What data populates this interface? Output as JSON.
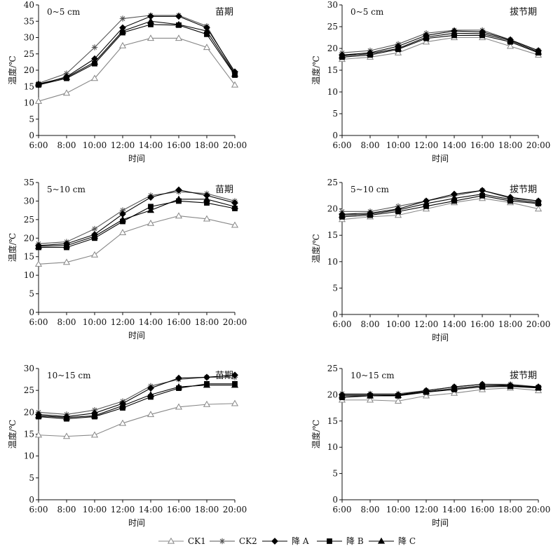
{
  "figure": {
    "x_label": "时间",
    "y_label": "温度/℃",
    "legend_position": "bottom-center"
  },
  "legend": [
    {
      "key": "ck1",
      "label": "CK1",
      "marker": "triangle-open",
      "color": "#888888"
    },
    {
      "key": "ck2",
      "label": "CK2",
      "marker": "star",
      "color": "#555555"
    },
    {
      "key": "jA",
      "label": "降 A",
      "marker": "diamond",
      "color": "#000000"
    },
    {
      "key": "jB",
      "label": "降 B",
      "marker": "square",
      "color": "#000000"
    },
    {
      "key": "jC",
      "label": "降 C",
      "marker": "triangle",
      "color": "#000000"
    }
  ],
  "chart_data": [
    {
      "type": "line",
      "depth_label": "0~5 cm",
      "stage_label": "苗期",
      "categories": [
        "6:00",
        "8:00",
        "10:00",
        "12:00",
        "14:00",
        "16:00",
        "18:00",
        "20:00"
      ],
      "ylim": [
        0,
        40
      ],
      "yticks": [
        0,
        5,
        10,
        15,
        20,
        25,
        30,
        35,
        40
      ],
      "series": [
        {
          "key": "ck1",
          "values": [
            10.5,
            13.0,
            17.5,
            27.5,
            29.8,
            29.8,
            27.0,
            15.5
          ]
        },
        {
          "key": "ck2",
          "values": [
            16.0,
            19.0,
            27.0,
            35.8,
            36.8,
            36.8,
            33.5,
            19.0
          ]
        },
        {
          "key": "jA",
          "values": [
            15.5,
            18.0,
            23.5,
            33.0,
            36.5,
            36.5,
            33.0,
            19.5
          ]
        },
        {
          "key": "jB",
          "values": [
            15.5,
            17.5,
            22.0,
            31.5,
            34.0,
            33.8,
            31.0,
            18.5
          ]
        },
        {
          "key": "jC",
          "values": [
            15.8,
            17.8,
            22.5,
            32.0,
            35.0,
            34.0,
            32.0,
            18.8
          ]
        }
      ]
    },
    {
      "type": "line",
      "depth_label": "0~5 cm",
      "stage_label": "拔节期",
      "categories": [
        "6:00",
        "8:00",
        "10:00",
        "12:00",
        "14:00",
        "16:00",
        "18:00",
        "20:00"
      ],
      "ylim": [
        0,
        30
      ],
      "yticks": [
        0,
        5,
        10,
        15,
        20,
        25,
        30
      ],
      "series": [
        {
          "key": "ck1",
          "values": [
            17.5,
            18.0,
            19.0,
            21.5,
            22.5,
            22.5,
            20.5,
            18.5
          ]
        },
        {
          "key": "ck2",
          "values": [
            19.0,
            19.5,
            21.0,
            23.5,
            24.2,
            24.2,
            22.0,
            19.5
          ]
        },
        {
          "key": "jA",
          "values": [
            18.5,
            19.0,
            20.5,
            23.0,
            24.0,
            23.8,
            22.0,
            19.5
          ]
        },
        {
          "key": "jB",
          "values": [
            18.0,
            18.5,
            19.8,
            22.3,
            23.0,
            23.0,
            21.5,
            19.0
          ]
        },
        {
          "key": "jC",
          "values": [
            18.3,
            18.8,
            20.0,
            22.6,
            23.5,
            23.4,
            21.8,
            19.2
          ]
        }
      ]
    },
    {
      "type": "line",
      "depth_label": "5~10 cm",
      "stage_label": "苗期",
      "categories": [
        "6:00",
        "8:00",
        "10:00",
        "12:00",
        "14:00",
        "16:00",
        "18:00",
        "20:00"
      ],
      "ylim": [
        0,
        35
      ],
      "yticks": [
        0,
        5,
        10,
        15,
        20,
        25,
        30,
        35
      ],
      "series": [
        {
          "key": "ck1",
          "values": [
            13.0,
            13.5,
            15.5,
            21.5,
            24.0,
            26.0,
            25.2,
            23.5
          ]
        },
        {
          "key": "ck2",
          "values": [
            18.5,
            19.0,
            22.5,
            27.5,
            31.5,
            32.5,
            32.0,
            30.0
          ]
        },
        {
          "key": "jA",
          "values": [
            18.0,
            18.5,
            21.0,
            26.5,
            31.0,
            33.0,
            31.5,
            29.5
          ]
        },
        {
          "key": "jB",
          "values": [
            17.5,
            17.5,
            20.0,
            24.5,
            28.5,
            30.0,
            29.5,
            28.0
          ]
        },
        {
          "key": "jC",
          "values": [
            17.8,
            18.0,
            20.5,
            25.0,
            27.5,
            30.5,
            30.5,
            28.5
          ]
        }
      ]
    },
    {
      "type": "line",
      "depth_label": "5~10 cm",
      "stage_label": "拔节期",
      "categories": [
        "6:00",
        "8:00",
        "10:00",
        "12:00",
        "14:00",
        "16:00",
        "18:00",
        "20:00"
      ],
      "ylim": [
        0,
        25
      ],
      "yticks": [
        0,
        5,
        10,
        15,
        20,
        25
      ],
      "series": [
        {
          "key": "ck1",
          "values": [
            18.0,
            18.5,
            18.8,
            20.0,
            21.2,
            22.0,
            21.2,
            20.0
          ]
        },
        {
          "key": "ck2",
          "values": [
            19.5,
            19.5,
            20.5,
            21.5,
            22.5,
            23.5,
            22.0,
            21.5
          ]
        },
        {
          "key": "jA",
          "values": [
            19.0,
            19.2,
            20.0,
            21.5,
            22.8,
            23.5,
            22.2,
            21.5
          ]
        },
        {
          "key": "jB",
          "values": [
            18.5,
            18.8,
            19.5,
            20.5,
            21.5,
            22.5,
            21.5,
            21.0
          ]
        },
        {
          "key": "jC",
          "values": [
            18.8,
            19.0,
            19.8,
            21.0,
            22.0,
            22.8,
            21.8,
            21.2
          ]
        }
      ]
    },
    {
      "type": "line",
      "depth_label": "10~15 cm",
      "stage_label": "苗期",
      "categories": [
        "6:00",
        "8:00",
        "10:00",
        "12:00",
        "14:00",
        "16:00",
        "18:00",
        "20:00"
      ],
      "ylim": [
        0,
        30
      ],
      "yticks": [
        0,
        5,
        10,
        15,
        20,
        25,
        30
      ],
      "series": [
        {
          "key": "ck1",
          "values": [
            14.8,
            14.5,
            14.8,
            17.5,
            19.5,
            21.2,
            21.8,
            22.0
          ]
        },
        {
          "key": "ck2",
          "values": [
            20.0,
            19.5,
            20.5,
            22.5,
            26.0,
            27.5,
            28.0,
            28.0
          ]
        },
        {
          "key": "jA",
          "values": [
            19.5,
            19.0,
            19.8,
            22.0,
            25.5,
            27.8,
            28.0,
            28.5
          ]
        },
        {
          "key": "jB",
          "values": [
            19.0,
            18.5,
            19.0,
            21.0,
            23.5,
            25.5,
            26.5,
            26.5
          ]
        },
        {
          "key": "jC",
          "values": [
            19.2,
            18.8,
            19.2,
            21.5,
            24.0,
            25.8,
            26.2,
            26.2
          ]
        }
      ]
    },
    {
      "type": "line",
      "depth_label": "10~15 cm",
      "stage_label": "拔节期",
      "categories": [
        "6:00",
        "8:00",
        "10:00",
        "12:00",
        "14:00",
        "16:00",
        "18:00",
        "20:00"
      ],
      "ylim": [
        0,
        25
      ],
      "yticks": [
        0,
        5,
        10,
        15,
        20,
        25
      ],
      "series": [
        {
          "key": "ck1",
          "values": [
            19.0,
            19.0,
            18.8,
            19.8,
            20.3,
            21.0,
            21.3,
            20.8
          ]
        },
        {
          "key": "ck2",
          "values": [
            20.2,
            20.2,
            20.2,
            20.8,
            21.5,
            22.0,
            22.0,
            21.5
          ]
        },
        {
          "key": "jA",
          "values": [
            20.0,
            20.0,
            20.0,
            20.8,
            21.5,
            22.0,
            21.8,
            21.5
          ]
        },
        {
          "key": "jB",
          "values": [
            19.5,
            19.8,
            19.8,
            20.5,
            21.0,
            21.5,
            21.6,
            21.3
          ]
        },
        {
          "key": "jC",
          "values": [
            19.8,
            19.8,
            19.9,
            20.6,
            21.2,
            21.7,
            21.7,
            21.4
          ]
        }
      ]
    }
  ]
}
